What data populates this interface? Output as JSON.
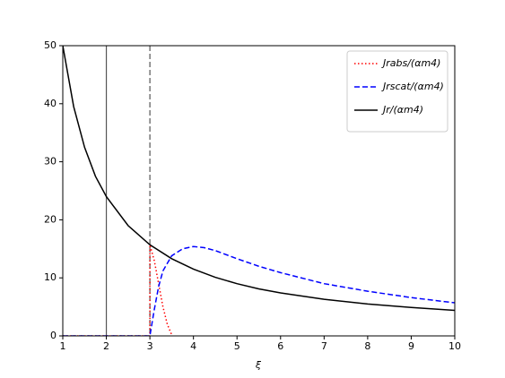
{
  "chart_data": {
    "type": "line",
    "xlabel": "ξ",
    "xlim": [
      1,
      10
    ],
    "ylim": [
      0,
      50
    ],
    "xticks": [
      1,
      2,
      3,
      4,
      5,
      6,
      7,
      8,
      9,
      10
    ],
    "yticks": [
      0,
      10,
      20,
      30,
      40,
      50
    ],
    "legend": "upper right",
    "vlines": [
      {
        "x": 2,
        "color": "#555555",
        "style": "solid"
      },
      {
        "x": 3,
        "color": "#555555",
        "style": "dashed"
      }
    ],
    "series": [
      {
        "name": "Jrabs/(αm4)",
        "color": "#ff0000",
        "style": "dotted",
        "x": [
          1,
          3,
          3,
          3.1,
          3.2,
          3.3,
          3.4,
          3.5
        ],
        "values": [
          0,
          0,
          15.7,
          13,
          9,
          5,
          2,
          0.2
        ]
      },
      {
        "name": "Jrscat/(αm4)",
        "color": "#0000ff",
        "style": "dashed",
        "x": [
          1,
          3,
          3.1,
          3.2,
          3.3,
          3.5,
          3.75,
          4,
          4.25,
          4.5,
          5,
          5.5,
          6,
          7,
          8,
          9,
          10
        ],
        "values": [
          0,
          0,
          4.5,
          8.5,
          11.2,
          13.8,
          15,
          15.4,
          15.2,
          14.7,
          13.3,
          12,
          10.9,
          9,
          7.7,
          6.6,
          5.7
        ]
      },
      {
        "name": "Jr/(αm4)",
        "color": "#000000",
        "style": "solid",
        "x": [
          1,
          1.25,
          1.5,
          1.75,
          2,
          2.5,
          3,
          3.5,
          4,
          4.5,
          5,
          5.5,
          6,
          7,
          8,
          9,
          10
        ],
        "values": [
          50,
          39.5,
          32.5,
          27.5,
          24,
          19,
          15.7,
          13.3,
          11.5,
          10.1,
          9,
          8.1,
          7.4,
          6.3,
          5.5,
          4.9,
          4.4
        ]
      }
    ]
  }
}
